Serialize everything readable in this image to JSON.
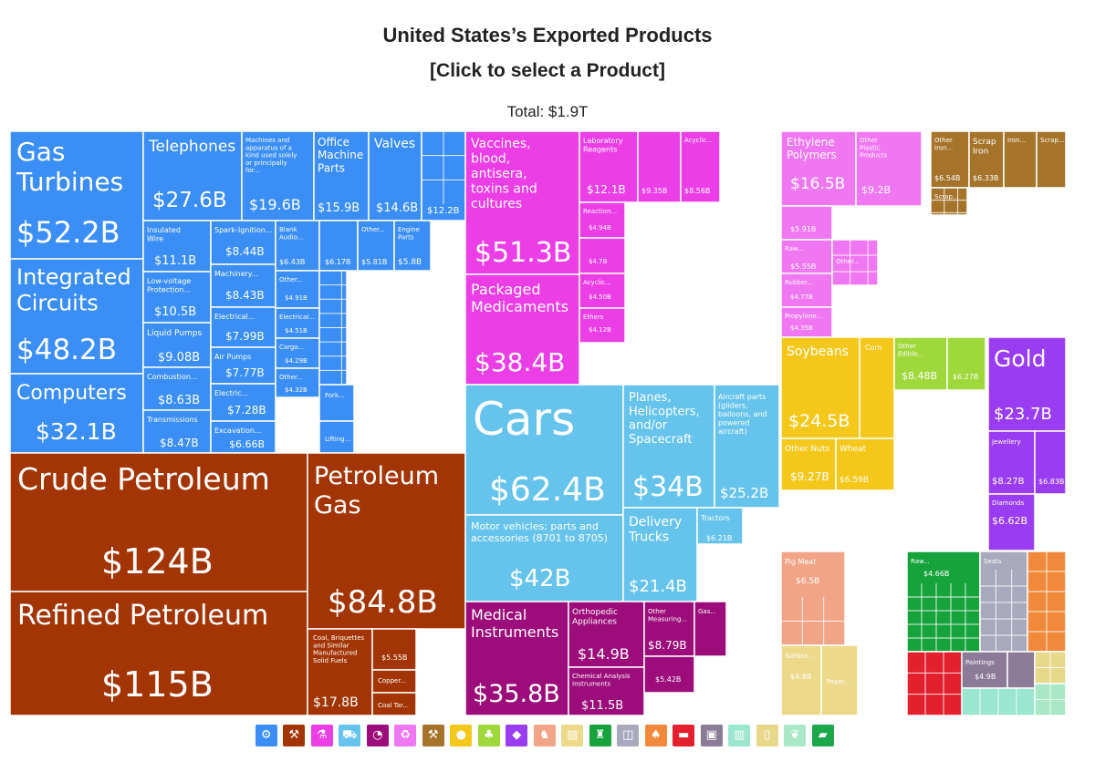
{
  "header": {
    "title": "United States’s Exported Products",
    "subtitle": "[Click to select a Product]",
    "total": "Total: $1.9T"
  },
  "chart_data": {
    "type": "treemap",
    "title": "United States’s Exported Products",
    "total": "$1.9T",
    "sectors": [
      {
        "name": "Machines",
        "color": "#3a8ef5",
        "items": [
          {
            "name": "Gas Turbines",
            "value": "$52.2B"
          },
          {
            "name": "Integrated Circuits",
            "value": "$48.2B"
          },
          {
            "name": "Computers",
            "value": "$32.1B"
          },
          {
            "name": "Telephones",
            "value": "$27.6B"
          },
          {
            "name": "Machines and apparatus of a kind used solely or principally for...",
            "value": "$19.6B"
          },
          {
            "name": "Office Machine Parts",
            "value": "$15.9B"
          },
          {
            "name": "Valves",
            "value": "$14.6B"
          },
          {
            "name": "",
            "value": "$12.2B"
          },
          {
            "name": "Insulated Wire",
            "value": "$11.1B"
          },
          {
            "name": "Low-voltage Protection...",
            "value": "$10.5B"
          },
          {
            "name": "Liquid Pumps",
            "value": "$9.08B"
          },
          {
            "name": "Combustion...",
            "value": "$8.63B"
          },
          {
            "name": "Transmissions",
            "value": "$8.47B"
          },
          {
            "name": "Spark-Ignition...",
            "value": "$8.44B"
          },
          {
            "name": "Machinery...",
            "value": "$8.43B"
          },
          {
            "name": "Electrical...",
            "value": "$7.99B"
          },
          {
            "name": "Air Pumps",
            "value": "$7.77B"
          },
          {
            "name": "Electric...",
            "value": "$7.28B"
          },
          {
            "name": "Excavation...",
            "value": "$6.66B"
          },
          {
            "name": "Blank Audio...",
            "value": "$6.43B"
          },
          {
            "name": "",
            "value": "$6.17B"
          },
          {
            "name": "Other...",
            "value": "$5.81B"
          },
          {
            "name": "Engine Parts",
            "value": "$5.8B"
          },
          {
            "name": "Other...",
            "value": "$4.91B"
          },
          {
            "name": "Electrical...",
            "value": "$4.51B"
          },
          {
            "name": "Cargo...",
            "value": "$4.29B"
          },
          {
            "name": "Other...",
            "value": "$4.32B"
          },
          {
            "name": "Air...",
            "value": ""
          },
          {
            "name": "Fork...",
            "value": ""
          },
          {
            "name": "Lifting...",
            "value": ""
          }
        ]
      },
      {
        "name": "Mineral Products",
        "color": "#a33505",
        "items": [
          {
            "name": "Crude Petroleum",
            "value": "$124B"
          },
          {
            "name": "Refined Petroleum",
            "value": "$115B"
          },
          {
            "name": "Petroleum Gas",
            "value": "$84.8B"
          },
          {
            "name": "Coal, Briquettes and Similar Manufactured Solid Fuels",
            "value": "$17.8B"
          },
          {
            "name": "",
            "value": "$5.55B"
          },
          {
            "name": "Copper...",
            "value": ""
          },
          {
            "name": "Coal Tar...",
            "value": ""
          }
        ]
      },
      {
        "name": "Chemical Products",
        "color": "#ec3ee6",
        "items": [
          {
            "name": "Vaccines, blood, antisera, toxins and cultures",
            "value": "$51.3B"
          },
          {
            "name": "Packaged Medicaments",
            "value": "$38.4B"
          },
          {
            "name": "Laboratory Reagents",
            "value": "$12.1B"
          },
          {
            "name": "",
            "value": "$9.35B"
          },
          {
            "name": "Acyclic...",
            "value": "$8.56B"
          },
          {
            "name": "Reaction...",
            "value": "$4.94B"
          },
          {
            "name": "",
            "value": "$4.7B"
          },
          {
            "name": "Acyclic...",
            "value": "$4.50B"
          },
          {
            "name": "Ethers",
            "value": "$4.12B"
          }
        ]
      },
      {
        "name": "Plastics and Rubbers",
        "color": "#f077f2",
        "items": [
          {
            "name": "Ethylene Polymers",
            "value": "$16.5B"
          },
          {
            "name": "Other Plastic Products",
            "value": "$9.2B"
          },
          {
            "name": "",
            "value": "$5.91B"
          },
          {
            "name": "Raw...",
            "value": "$5.55B"
          },
          {
            "name": "Rubber...",
            "value": "$4.77B"
          },
          {
            "name": "Propylene...",
            "value": "$4.35B"
          },
          {
            "name": "Other...",
            "value": ""
          }
        ]
      },
      {
        "name": "Metals",
        "color": "#a5742a",
        "items": [
          {
            "name": "Other Iron...",
            "value": "$6.54B"
          },
          {
            "name": "Scrap Iron",
            "value": "$6.33B"
          },
          {
            "name": "Iron...",
            "value": ""
          },
          {
            "name": "Scrap...",
            "value": ""
          },
          {
            "name": "Scrap...",
            "value": ""
          }
        ]
      },
      {
        "name": "Transportation",
        "color": "#66c4ec",
        "items": [
          {
            "name": "Cars",
            "value": "$62.4B"
          },
          {
            "name": "Planes, Helicopters, and/or Spacecraft",
            "value": "$34B"
          },
          {
            "name": "Aircraft parts (gliders, balloons, and powered aircraft)",
            "value": "$25.2B"
          },
          {
            "name": "Motor vehicles; parts and accessories (8701 to 8705)",
            "value": "$42B"
          },
          {
            "name": "Delivery Trucks",
            "value": "$21.4B"
          },
          {
            "name": "Tractors",
            "value": "$6.21B"
          }
        ]
      },
      {
        "name": "Instruments",
        "color": "#9c0c7a",
        "items": [
          {
            "name": "Medical Instruments",
            "value": "$35.8B"
          },
          {
            "name": "Orthopedic Appliances",
            "value": "$14.9B"
          },
          {
            "name": "Other Measuring...",
            "value": "$8.79B"
          },
          {
            "name": "Gas...",
            "value": ""
          },
          {
            "name": "Chemical Analysis Instruments",
            "value": "$11.5B"
          },
          {
            "name": "",
            "value": "$5.42B"
          }
        ]
      },
      {
        "name": "Vegetable Products",
        "color": "#f4c81b",
        "items": [
          {
            "name": "Soybeans",
            "value": "$24.5B"
          },
          {
            "name": "Corn",
            "value": ""
          },
          {
            "name": "Other Nuts",
            "value": "$9.27B"
          },
          {
            "name": "Wheat",
            "value": "$6.59B"
          }
        ]
      },
      {
        "name": "Foodstuffs",
        "color": "#9ed83b",
        "items": [
          {
            "name": "Other Edible...",
            "value": "$8.48B"
          },
          {
            "name": "",
            "value": "$6.27B"
          }
        ]
      },
      {
        "name": "Precious Metals",
        "color": "#9a3df2",
        "items": [
          {
            "name": "Gold",
            "value": "$23.7B"
          },
          {
            "name": "Jewellery",
            "value": "$8.27B"
          },
          {
            "name": "",
            "value": "$6.83B"
          },
          {
            "name": "Diamonds",
            "value": "$6.62B"
          }
        ]
      },
      {
        "name": "Animal Products",
        "color": "#f2a586",
        "items": [
          {
            "name": "Pig Meat",
            "value": "$6.5B"
          }
        ]
      },
      {
        "name": "Paper Goods",
        "color": "#ecd98a",
        "items": [
          {
            "name": "Sulfate...",
            "value": "$4.8B"
          },
          {
            "name": "Paper...",
            "value": ""
          }
        ]
      },
      {
        "name": "Textiles",
        "color": "#17a33b",
        "items": [
          {
            "name": "Raw...",
            "value": "$4.66B"
          }
        ]
      },
      {
        "name": "Stone and Glass",
        "color": "#a9a9bd",
        "items": [
          {
            "name": "Seats",
            "value": ""
          }
        ]
      },
      {
        "name": "Arts and Antiques",
        "color": "#8b7b97",
        "items": [
          {
            "name": "Paintings",
            "value": "$4.9B"
          }
        ]
      }
    ]
  },
  "legend": {
    "icons": [
      {
        "name": "machines-icon",
        "color": "#3a8ef5",
        "glyph": "⚙"
      },
      {
        "name": "mineral-products-icon",
        "color": "#a33505",
        "glyph": "⚒"
      },
      {
        "name": "chemical-products-icon",
        "color": "#ec3ee6",
        "glyph": "⚗"
      },
      {
        "name": "transportation-icon",
        "color": "#66c4ec",
        "glyph": "⛟"
      },
      {
        "name": "instruments-icon",
        "color": "#9c0c7a",
        "glyph": "◔"
      },
      {
        "name": "plastics-rubbers-icon",
        "color": "#f077f2",
        "glyph": "♻"
      },
      {
        "name": "metals-icon",
        "color": "#a5742a",
        "glyph": "⚒"
      },
      {
        "name": "vegetable-products-icon",
        "color": "#f4c81b",
        "glyph": "●"
      },
      {
        "name": "foodstuffs-icon",
        "color": "#9ed83b",
        "glyph": "♣"
      },
      {
        "name": "precious-metals-icon",
        "color": "#9a3df2",
        "glyph": "◆"
      },
      {
        "name": "animal-products-icon",
        "color": "#f2a586",
        "glyph": "♞"
      },
      {
        "name": "paper-goods-icon",
        "color": "#ecd98a",
        "glyph": "▤"
      },
      {
        "name": "textiles-icon",
        "color": "#17a33b",
        "glyph": "♜"
      },
      {
        "name": "stone-glass-icon",
        "color": "#a9a9bd",
        "glyph": "◫"
      },
      {
        "name": "animal-hides-icon",
        "color": "#f08a3a",
        "glyph": "♠"
      },
      {
        "name": "miscellaneous-icon",
        "color": "#e3202e",
        "glyph": "▬"
      },
      {
        "name": "arts-antiques-icon",
        "color": "#8b7b97",
        "glyph": "▣"
      },
      {
        "name": "footwear-icon",
        "color": "#9ae6cf",
        "glyph": "▥"
      },
      {
        "name": "animal-vegetable-fats-icon",
        "color": "#e8d88a",
        "glyph": "▯"
      },
      {
        "name": "wood-products-icon",
        "color": "#a8e8c6",
        "glyph": "❦"
      },
      {
        "name": "weapons-icon",
        "color": "#1aa84a",
        "glyph": "▰"
      }
    ]
  }
}
